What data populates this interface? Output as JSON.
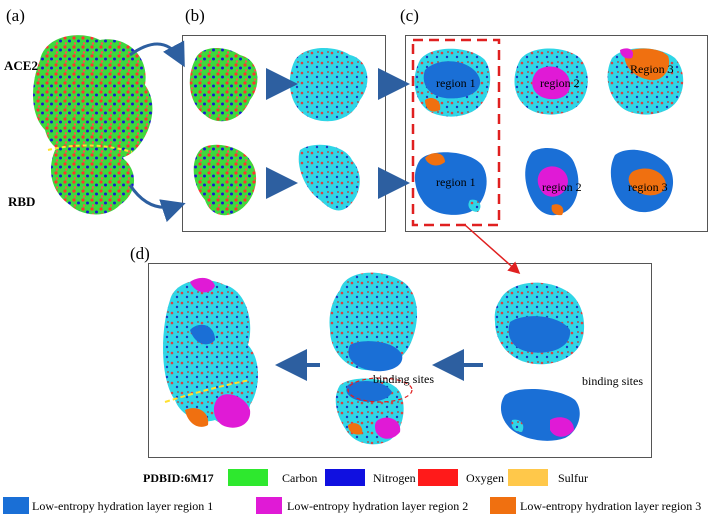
{
  "panels": {
    "a": "(a)",
    "b": "(b)",
    "c": "(c)",
    "d": "(d)"
  },
  "labels": {
    "ace2": "ACE2",
    "rbd": "RBD",
    "region1_top": "region 1",
    "region2_top": "region 2",
    "region3_top": "Region 3",
    "region1_bottom": "region 1",
    "region2_bottom": "region 2",
    "region3_bottom": "region 3",
    "binding_sites_mid": "binding sites",
    "binding_sites_right": "binding sites"
  },
  "legend": {
    "pdbid": "PDBID:6M17",
    "atoms": [
      {
        "label": "Carbon",
        "color": "#2ee82e"
      },
      {
        "label": "Nitrogen",
        "color": "#1010e0"
      },
      {
        "label": "Oxygen",
        "color": "#ff1a1a"
      },
      {
        "label": "Sulfur",
        "color": "#ffc84a"
      }
    ],
    "regions": [
      {
        "label": "Low-entropy hydration layer region 1",
        "color": "#1a6fd6"
      },
      {
        "label": "Low-entropy hydration layer region 2",
        "color": "#e01ad6"
      },
      {
        "label": "Low-entropy hydration layer region 3",
        "color": "#f07010"
      }
    ]
  }
}
